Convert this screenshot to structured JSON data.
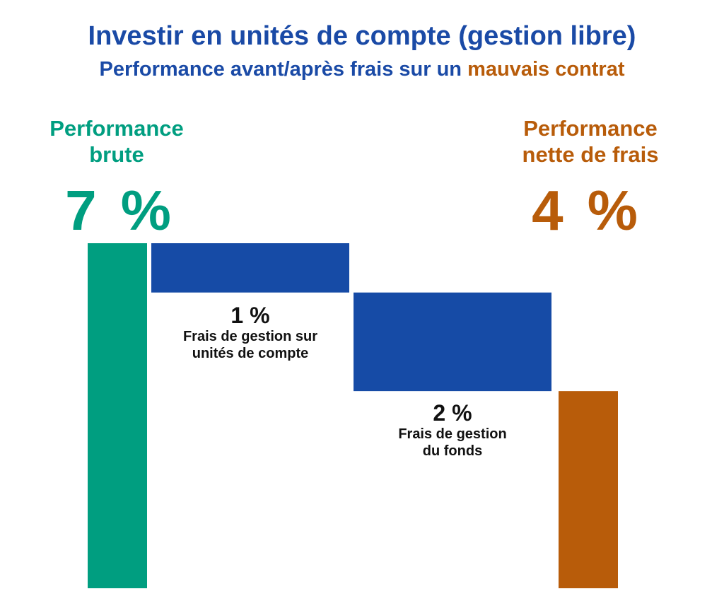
{
  "title": "Investir en unités de compte (gestion libre)",
  "subtitle_prefix": "Performance avant/après frais sur un ",
  "subtitle_highlight": "mauvais contrat",
  "colors": {
    "gross": "#009e80",
    "fees": "#164ba6",
    "net": "#b85c0a",
    "title": "#1a4aa6"
  },
  "chart_data": {
    "type": "bar",
    "subtype": "waterfall",
    "ylim": [
      0,
      7
    ],
    "steps": [
      {
        "header": "Performance brute",
        "value_label": "7 %",
        "value": 7,
        "kind": "total"
      },
      {
        "pct_label": "1 %",
        "desc_line1": "Frais de gestion sur",
        "desc_line2": "unités de compte",
        "value": -1,
        "kind": "decrease"
      },
      {
        "pct_label": "2 %",
        "desc_line1": "Frais de gestion",
        "desc_line2": "du fonds",
        "value": -2,
        "kind": "decrease"
      },
      {
        "header": "Performance nette de frais",
        "value_label": "4 %",
        "value": 4,
        "kind": "total"
      }
    ]
  }
}
